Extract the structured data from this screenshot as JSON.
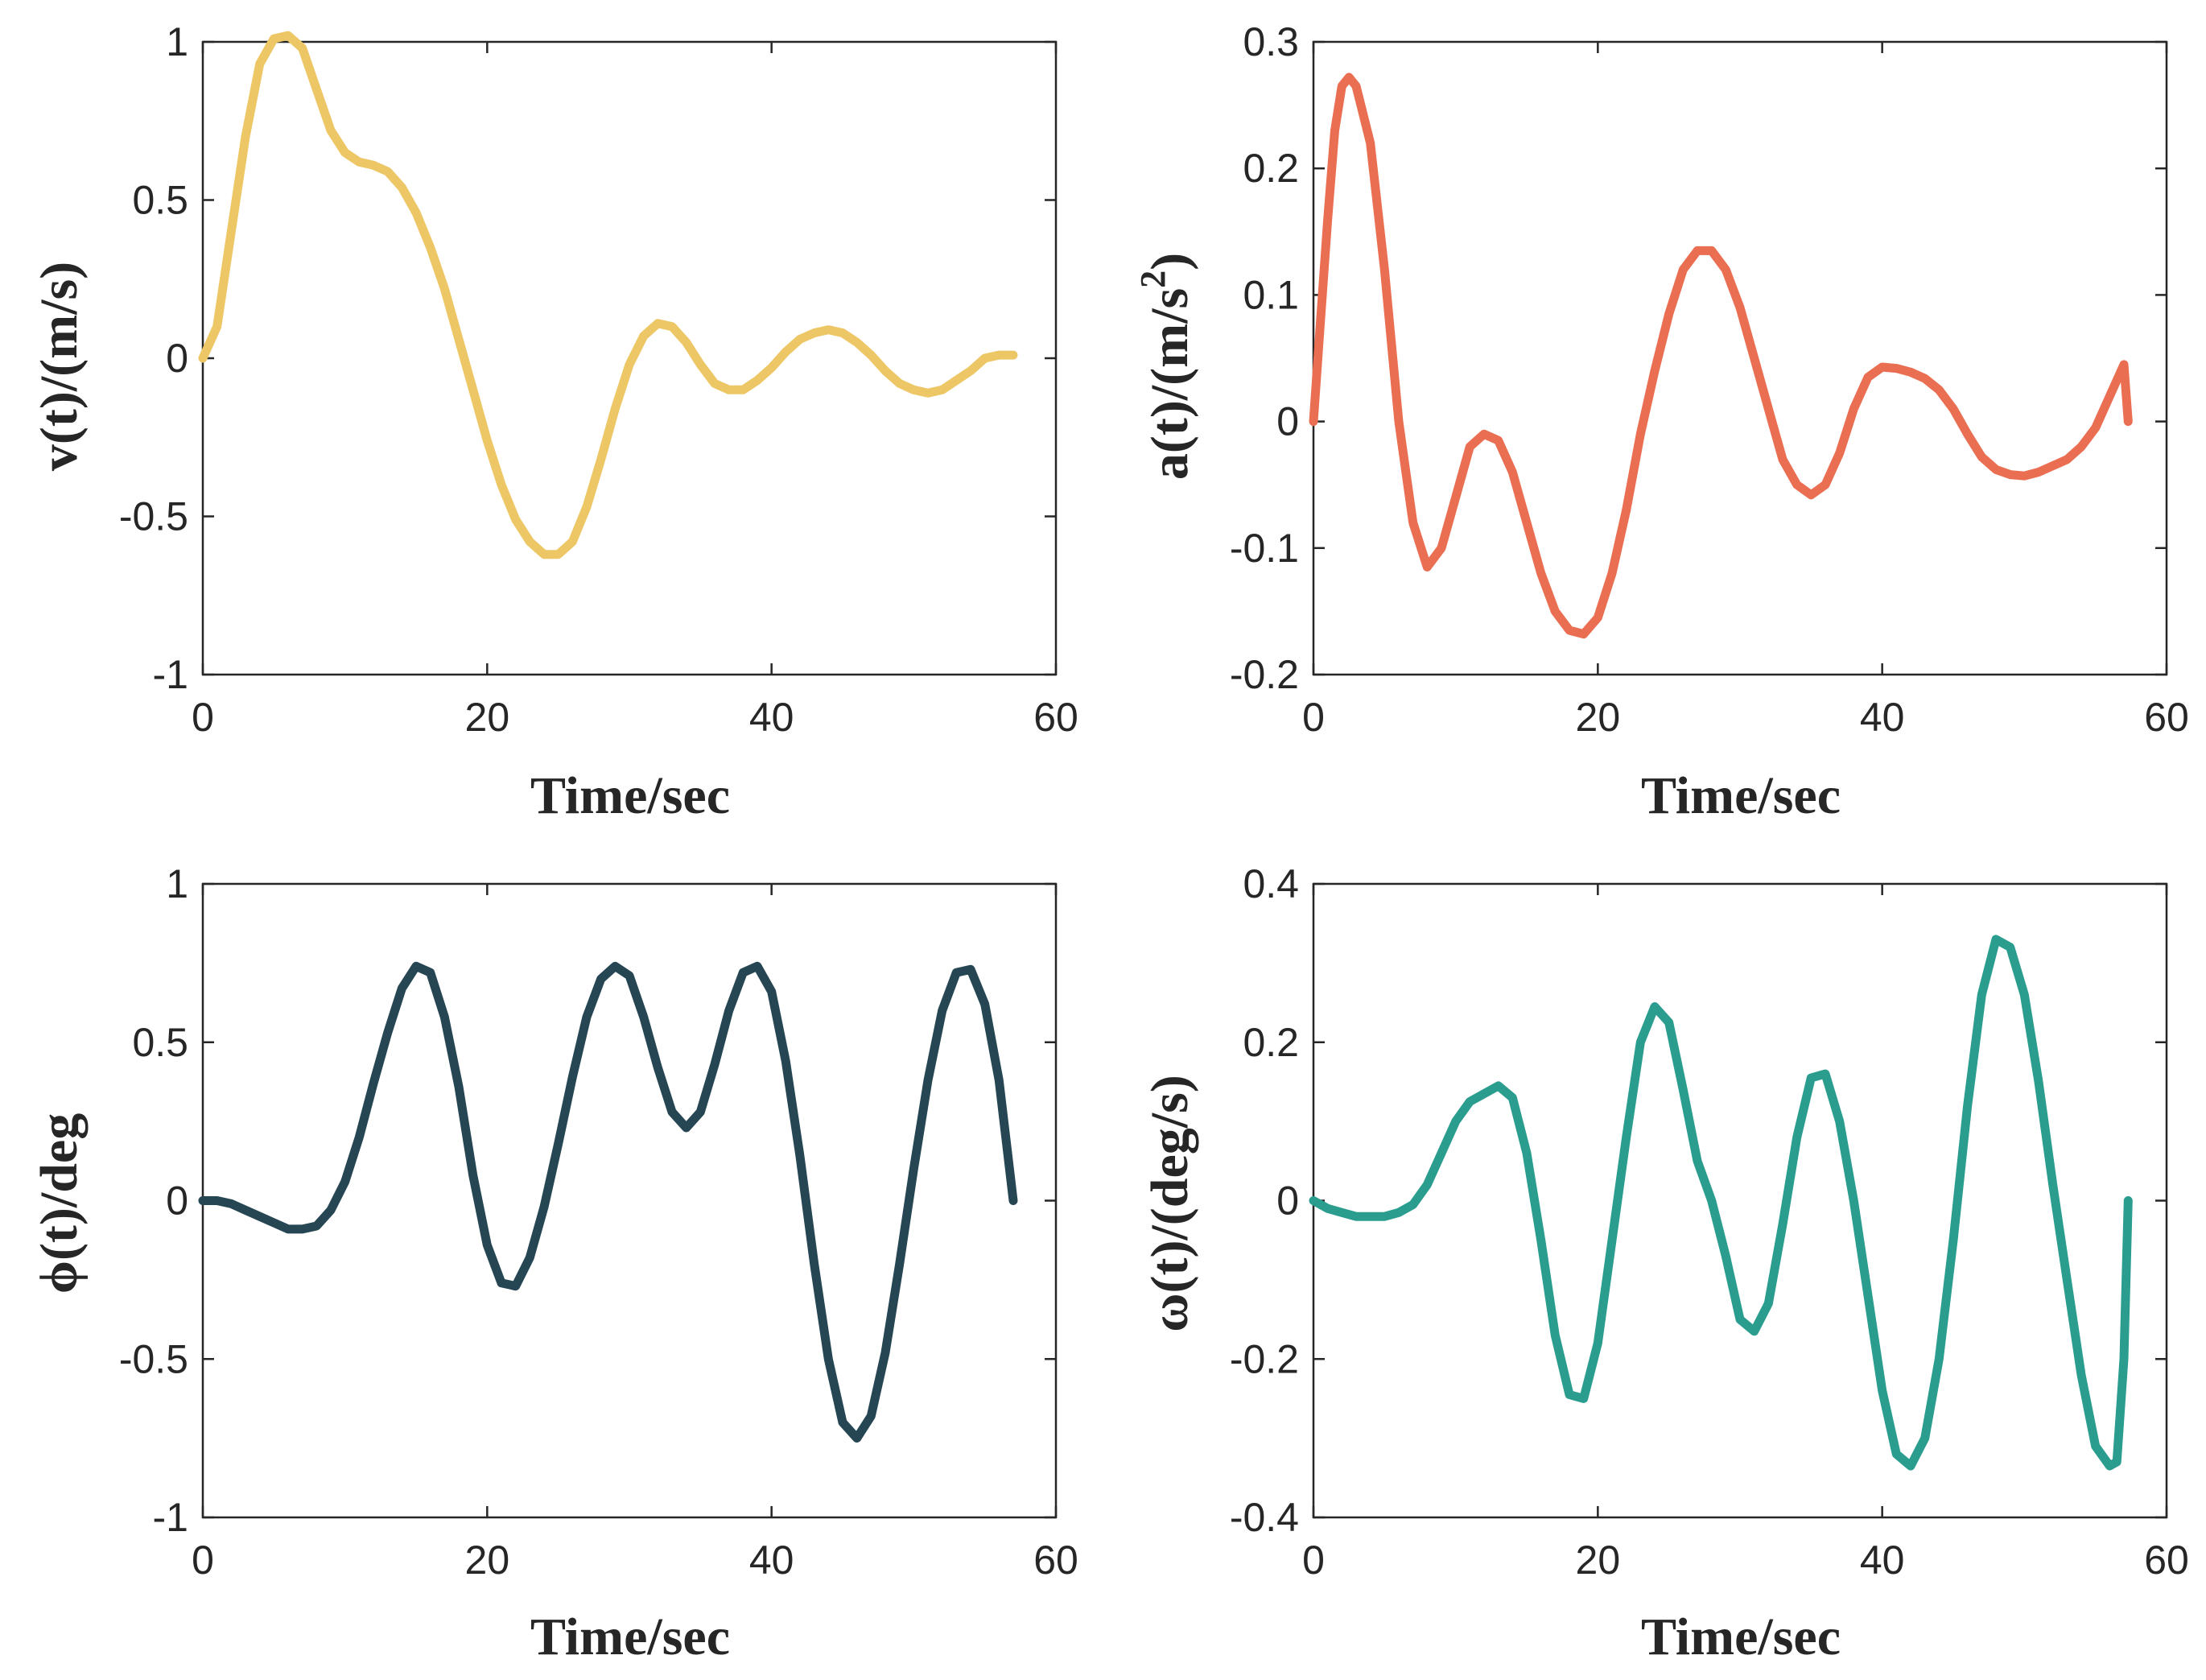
{
  "chart_data": [
    {
      "type": "line",
      "id": "velocity",
      "xlabel": "Time/sec",
      "ylabel": "v(t)/(m/s)",
      "xlim": [
        0,
        60
      ],
      "ylim": [
        -1,
        1
      ],
      "xticks": [
        "0",
        "20",
        "40",
        "60"
      ],
      "yticks": [
        "-1",
        "-0.5",
        "0",
        "0.5",
        "1"
      ],
      "color": "#EDC766",
      "series": [
        {
          "name": "v(t)",
          "x": [
            0,
            1,
            2,
            3,
            4,
            5,
            6,
            7,
            8,
            9,
            10,
            11,
            12,
            13,
            14,
            15,
            16,
            17,
            18,
            19,
            20,
            21,
            22,
            23,
            24,
            25,
            26,
            27,
            28,
            29,
            30,
            31,
            32,
            33,
            34,
            35,
            36,
            37,
            38,
            39,
            40,
            41,
            42,
            43,
            44,
            45,
            46,
            47,
            48,
            49,
            50,
            51,
            52,
            53,
            54,
            55,
            56,
            57
          ],
          "values": [
            0,
            0.1,
            0.4,
            0.7,
            0.93,
            1.01,
            1.02,
            0.98,
            0.85,
            0.72,
            0.65,
            0.62,
            0.61,
            0.59,
            0.54,
            0.46,
            0.35,
            0.22,
            0.06,
            -0.1,
            -0.26,
            -0.4,
            -0.51,
            -0.58,
            -0.62,
            -0.62,
            -0.58,
            -0.47,
            -0.32,
            -0.16,
            -0.02,
            0.07,
            0.11,
            0.1,
            0.05,
            -0.02,
            -0.08,
            -0.1,
            -0.1,
            -0.07,
            -0.03,
            0.02,
            0.06,
            0.08,
            0.09,
            0.08,
            0.05,
            0.01,
            -0.04,
            -0.08,
            -0.1,
            -0.11,
            -0.1,
            -0.07,
            -0.04,
            0,
            0.01,
            0.01
          ]
        }
      ]
    },
    {
      "type": "line",
      "id": "acceleration",
      "xlabel": "Time/sec",
      "ylabel": "a(t)/(m/s",
      "ylabel_sup": "2",
      "ylabel_close": ")",
      "xlim": [
        0,
        60
      ],
      "ylim": [
        -0.2,
        0.3
      ],
      "xticks": [
        "0",
        "20",
        "40",
        "60"
      ],
      "yticks": [
        "-0.2",
        "-0.1",
        "0",
        "0.1",
        "0.2",
        "0.3"
      ],
      "color": "#EA6E52",
      "series": [
        {
          "name": "a(t)",
          "x": [
            0,
            0.5,
            1,
            1.5,
            2,
            2.5,
            3,
            4,
            5,
            6,
            7,
            8,
            9,
            10,
            11,
            12,
            13,
            14,
            15,
            16,
            17,
            18,
            19,
            20,
            21,
            22,
            23,
            24,
            25,
            26,
            27,
            28,
            29,
            30,
            31,
            32,
            33,
            34,
            35,
            36,
            37,
            38,
            39,
            40,
            41,
            42,
            43,
            44,
            45,
            46,
            47,
            48,
            49,
            50,
            51,
            52,
            53,
            54,
            55,
            56,
            57,
            57.3
          ],
          "values": [
            0,
            0.08,
            0.16,
            0.23,
            0.265,
            0.272,
            0.265,
            0.22,
            0.12,
            0.0,
            -0.08,
            -0.115,
            -0.1,
            -0.06,
            -0.02,
            -0.01,
            -0.015,
            -0.04,
            -0.08,
            -0.12,
            -0.15,
            -0.165,
            -0.168,
            -0.155,
            -0.12,
            -0.07,
            -0.01,
            0.04,
            0.085,
            0.12,
            0.135,
            0.135,
            0.12,
            0.09,
            0.05,
            0.01,
            -0.03,
            -0.05,
            -0.058,
            -0.05,
            -0.025,
            0.01,
            0.035,
            0.043,
            0.042,
            0.039,
            0.034,
            0.025,
            0.01,
            -0.01,
            -0.028,
            -0.038,
            -0.042,
            -0.043,
            -0.04,
            -0.035,
            -0.03,
            -0.02,
            -0.005,
            0.02,
            0.045,
            0
          ]
        }
      ]
    },
    {
      "type": "line",
      "id": "phi",
      "xlabel": "Time/sec",
      "ylabel": "ϕ(t)/deg",
      "xlim": [
        0,
        60
      ],
      "ylim": [
        -1,
        1
      ],
      "xticks": [
        "0",
        "20",
        "40",
        "60"
      ],
      "yticks": [
        "-1",
        "-0.5",
        "0",
        "0.5",
        "1"
      ],
      "color": "#264653",
      "series": [
        {
          "name": "phi(t)",
          "x": [
            0,
            1,
            2,
            3,
            4,
            5,
            6,
            7,
            8,
            9,
            10,
            11,
            12,
            13,
            14,
            15,
            16,
            17,
            18,
            19,
            20,
            21,
            22,
            23,
            24,
            25,
            26,
            27,
            28,
            29,
            30,
            31,
            32,
            33,
            34,
            35,
            36,
            37,
            38,
            39,
            40,
            41,
            42,
            43,
            44,
            45,
            46,
            47,
            48,
            49,
            50,
            51,
            52,
            53,
            54,
            55,
            56,
            57
          ],
          "values": [
            0,
            0,
            -0.01,
            -0.03,
            -0.05,
            -0.07,
            -0.09,
            -0.09,
            -0.08,
            -0.03,
            0.06,
            0.2,
            0.37,
            0.53,
            0.67,
            0.74,
            0.72,
            0.58,
            0.36,
            0.08,
            -0.14,
            -0.26,
            -0.27,
            -0.18,
            -0.02,
            0.18,
            0.39,
            0.58,
            0.7,
            0.74,
            0.71,
            0.58,
            0.42,
            0.28,
            0.23,
            0.28,
            0.43,
            0.6,
            0.72,
            0.74,
            0.66,
            0.44,
            0.14,
            -0.2,
            -0.5,
            -0.7,
            -0.75,
            -0.68,
            -0.48,
            -0.2,
            0.1,
            0.38,
            0.6,
            0.72,
            0.73,
            0.62,
            0.38,
            0
          ]
        }
      ]
    },
    {
      "type": "line",
      "id": "omega",
      "xlabel": "Time/sec",
      "ylabel": "ω(t)/(deg/s)",
      "xlim": [
        0,
        60
      ],
      "ylim": [
        -0.4,
        0.4
      ],
      "xticks": [
        "0",
        "20",
        "40",
        "60"
      ],
      "yticks": [
        "-0.4",
        "-0.2",
        "0",
        "0.2",
        "0.4"
      ],
      "color": "#2A9D8F",
      "series": [
        {
          "name": "omega(t)",
          "x": [
            0,
            1,
            2,
            3,
            4,
            5,
            6,
            7,
            8,
            9,
            10,
            11,
            12,
            13,
            14,
            15,
            16,
            17,
            18,
            19,
            20,
            21,
            22,
            23,
            24,
            25,
            26,
            27,
            28,
            29,
            30,
            31,
            32,
            33,
            34,
            35,
            36,
            37,
            38,
            39,
            40,
            41,
            42,
            43,
            44,
            45,
            46,
            47,
            48,
            49,
            50,
            51,
            52,
            53,
            54,
            55,
            56,
            56.5,
            57,
            57.3,
            57.3
          ],
          "values": [
            0,
            -0.01,
            -0.015,
            -0.02,
            -0.02,
            -0.02,
            -0.015,
            -0.005,
            0.02,
            0.06,
            0.1,
            0.125,
            0.135,
            0.145,
            0.13,
            0.06,
            -0.05,
            -0.17,
            -0.245,
            -0.25,
            -0.18,
            -0.05,
            0.08,
            0.2,
            0.245,
            0.225,
            0.14,
            0.05,
            0.0,
            -0.07,
            -0.15,
            -0.165,
            -0.13,
            -0.03,
            0.08,
            0.155,
            0.16,
            0.1,
            0.0,
            -0.12,
            -0.24,
            -0.32,
            -0.335,
            -0.3,
            -0.2,
            -0.05,
            0.12,
            0.26,
            0.33,
            0.32,
            0.26,
            0.15,
            0.02,
            -0.1,
            -0.22,
            -0.31,
            -0.335,
            -0.33,
            -0.2,
            0,
            0
          ]
        }
      ]
    }
  ]
}
